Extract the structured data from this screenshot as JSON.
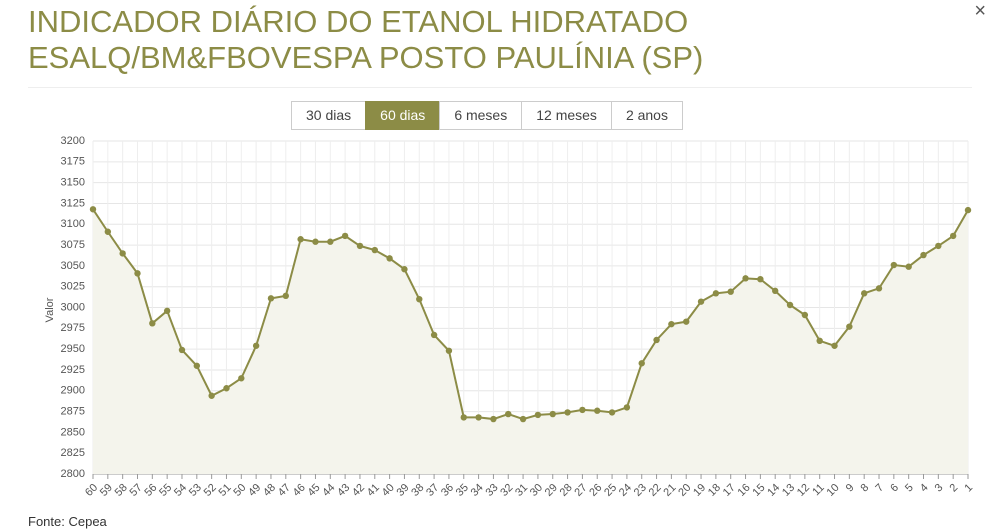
{
  "page": {
    "title": [
      "INDICADOR DIÁRIO DO ETANOL HIDRATADO",
      "ESALQ/BM&FBOVESPA POSTO PAULÍNIA (SP)"
    ],
    "close": "×",
    "buttons": [
      "30 dias",
      "60 dias",
      "6 meses",
      "12 meses",
      "2 anos"
    ],
    "active_button": 1,
    "source": "Fonte: Cepea"
  },
  "chart_data": {
    "type": "line",
    "y_label": "Valor",
    "color": "#8c8c46",
    "area": true,
    "grid": true,
    "categories": [
      "60",
      "59",
      "58",
      "57",
      "56",
      "55",
      "54",
      "53",
      "52",
      "51",
      "50",
      "49",
      "48",
      "47",
      "46",
      "45",
      "44",
      "43",
      "42",
      "41",
      "40",
      "39",
      "38",
      "37",
      "36",
      "35",
      "34",
      "33",
      "32",
      "31",
      "30",
      "29",
      "28",
      "27",
      "26",
      "25",
      "24",
      "23",
      "22",
      "21",
      "20",
      "19",
      "18",
      "17",
      "16",
      "15",
      "14",
      "13",
      "12",
      "11",
      "10",
      "9",
      "8",
      "7",
      "6",
      "5",
      "4",
      "3",
      "2",
      "1"
    ],
    "values": [
      3118,
      3091,
      3065,
      3041,
      2981,
      2996,
      2949,
      2930,
      2894,
      2903,
      2915,
      2954,
      3011,
      3014,
      3082,
      3079,
      3079,
      3086,
      3074,
      3069,
      3059,
      3046,
      3010,
      2967,
      2948,
      2868,
      2868,
      2866,
      2872,
      2866,
      2871,
      2872,
      2874,
      2877,
      2876,
      2874,
      2880,
      2933,
      2961,
      2980,
      2983,
      3007,
      3017,
      3019,
      3035,
      3034,
      3020,
      3003,
      2991,
      2960,
      2954,
      2977,
      3017,
      3023,
      3051,
      3049,
      3063,
      3074,
      3086,
      3117
    ],
    "ylim": [
      2800,
      3200
    ],
    "yticks": [
      2800,
      2825,
      2850,
      2875,
      2900,
      2925,
      2950,
      2975,
      3000,
      3025,
      3050,
      3075,
      3100,
      3125,
      3150,
      3175,
      3200
    ]
  }
}
